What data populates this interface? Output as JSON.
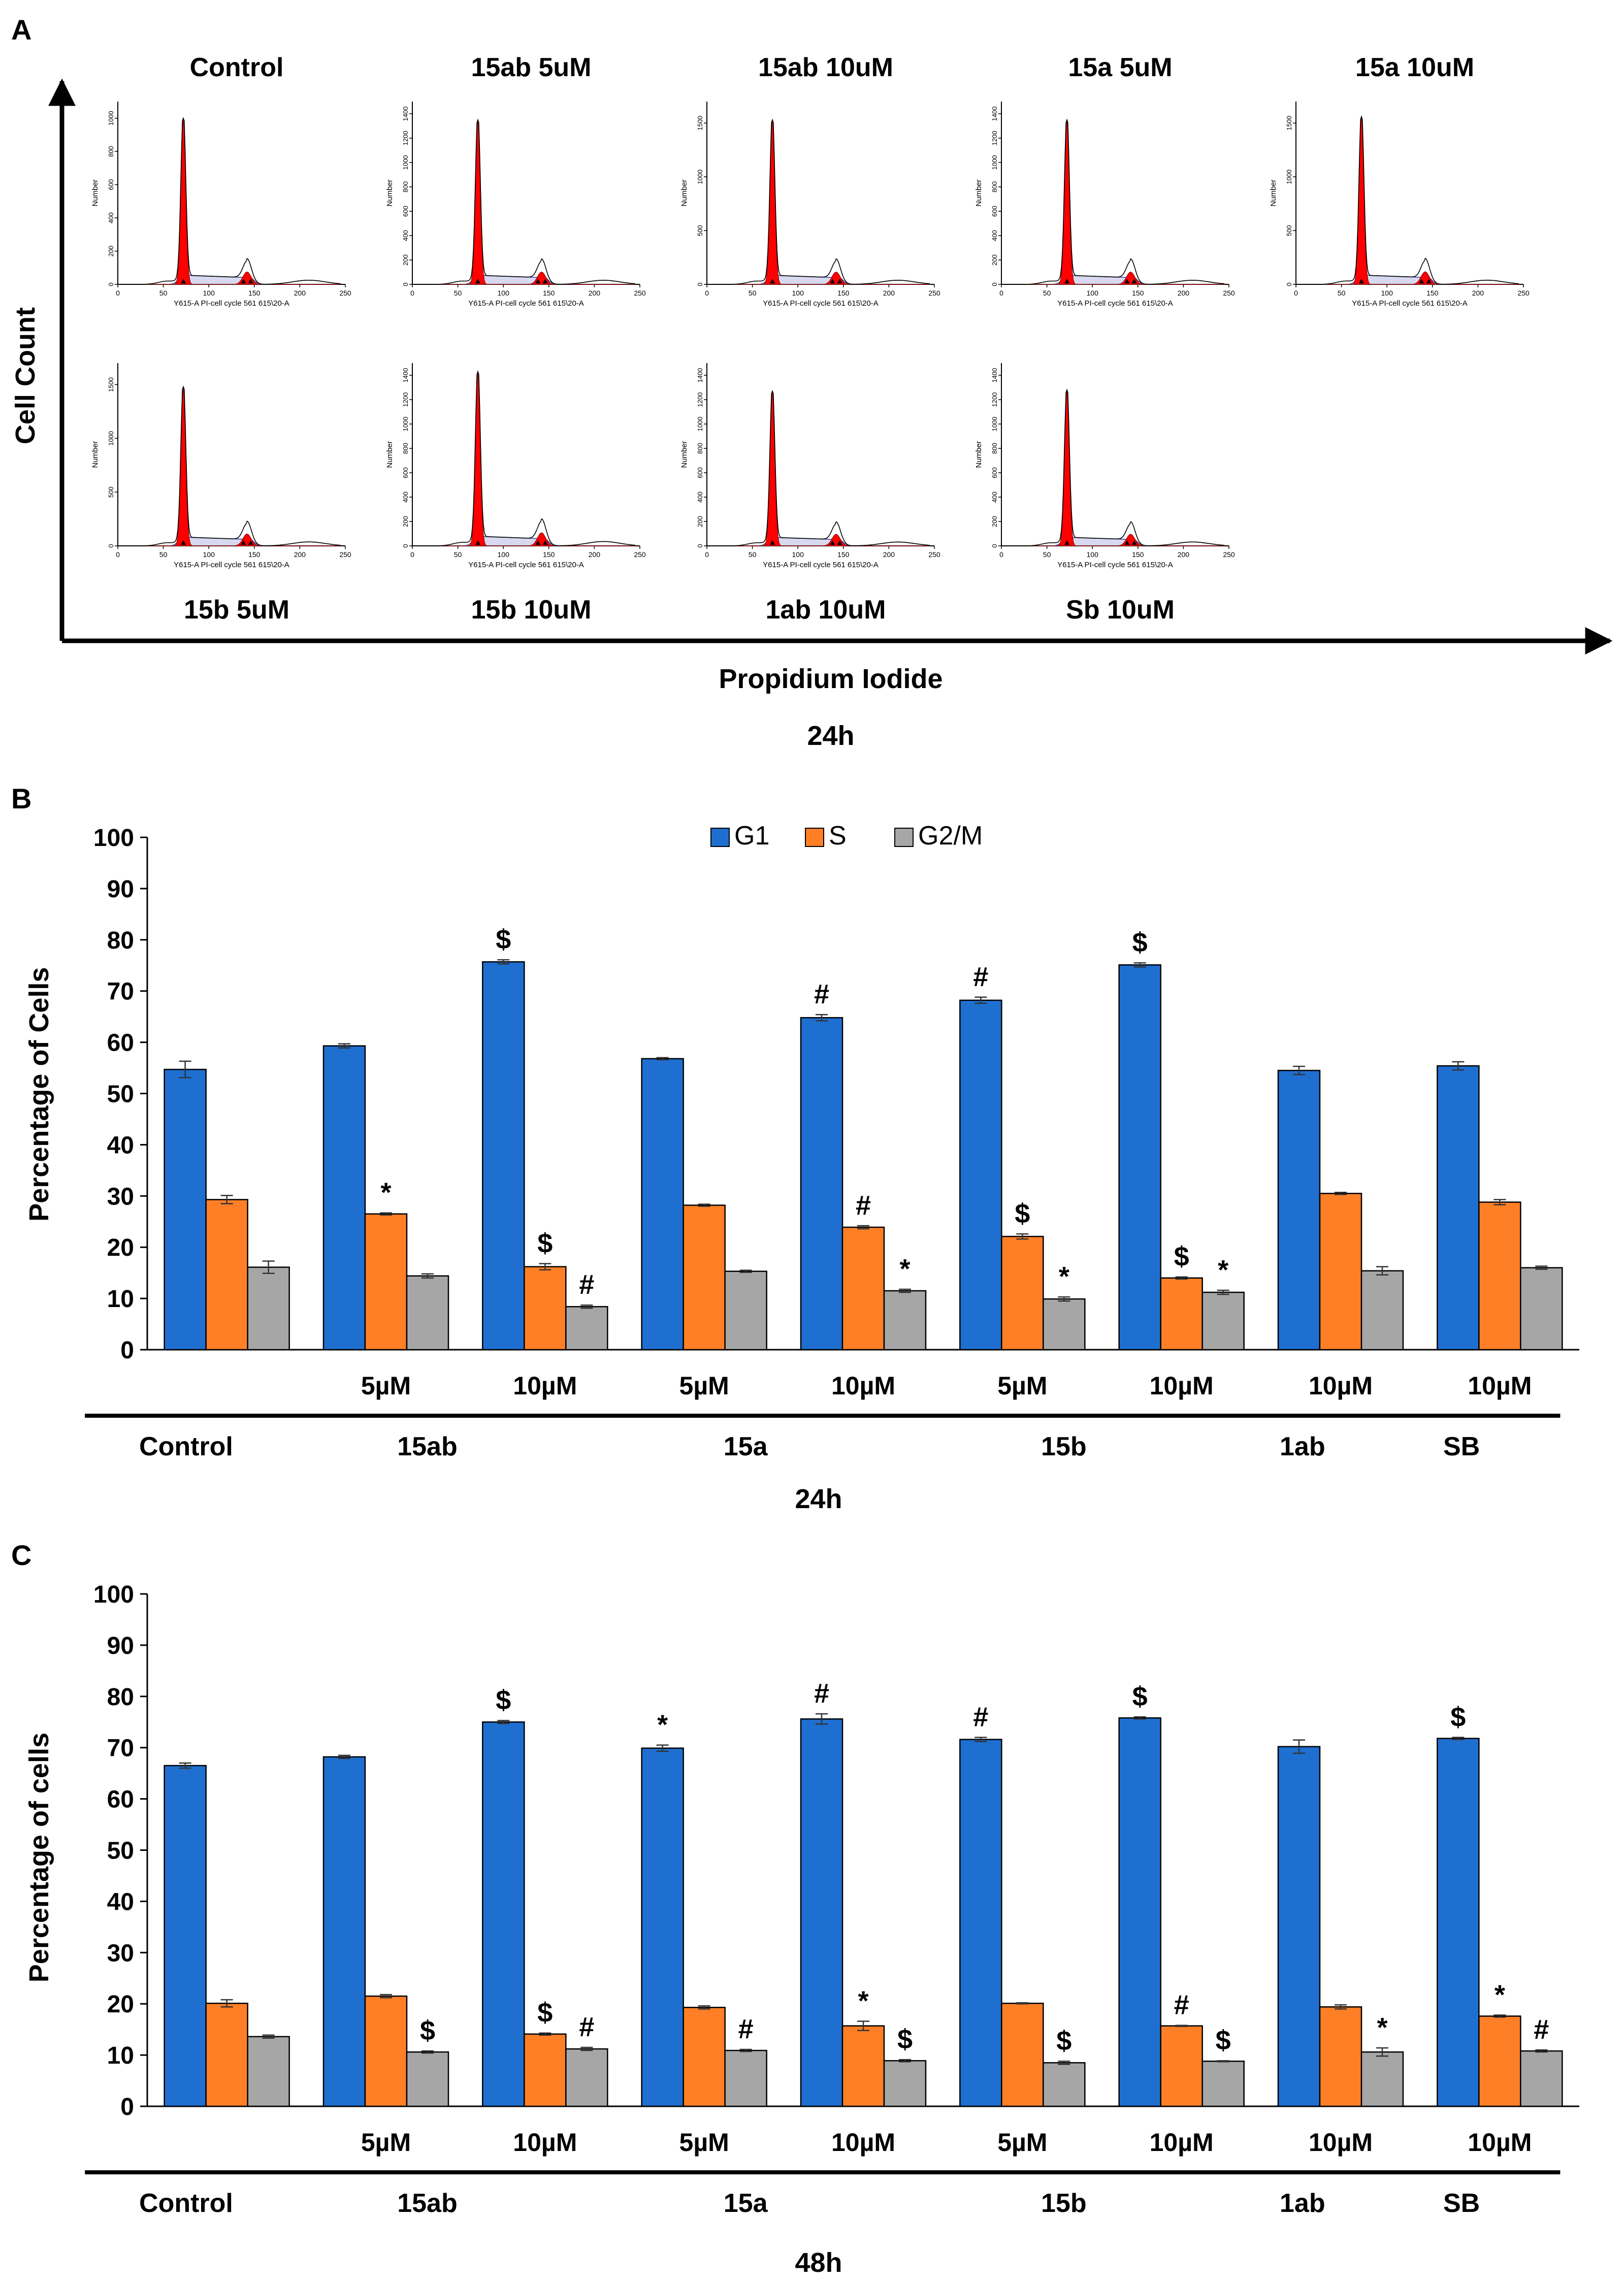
{
  "panel_a": {
    "letter": "A",
    "y_label": "Cell Count",
    "x_label": "Propidium Iodide",
    "timepoint": "24h",
    "histo_axis": {
      "y_title": "Number",
      "x_title": "Y615-A PI-cell cycle 561 615\\20-A",
      "x_ticks": [
        "0",
        "50",
        "100",
        "150",
        "200",
        "250"
      ],
      "x_range": [
        0,
        250
      ]
    },
    "rows": [
      [
        {
          "title": "Control",
          "y_ticks": [
            "0",
            "200",
            "400",
            "600",
            "800",
            "1000"
          ],
          "y_max": 1100,
          "peak_counts": 1000
        },
        {
          "title": "15ab 5uM",
          "y_ticks": [
            "0",
            "200",
            "400",
            "600",
            "800",
            "1000",
            "1200",
            "1400"
          ],
          "y_max": 1500,
          "peak_counts": 1350
        },
        {
          "title": "15ab 10uM",
          "y_ticks": [
            "0",
            "500",
            "1000",
            "1500"
          ],
          "y_max": 1700,
          "peak_counts": 1530
        },
        {
          "title": "15a 5uM",
          "y_ticks": [
            "0",
            "200",
            "400",
            "600",
            "800",
            "1000",
            "1200",
            "1400"
          ],
          "y_max": 1500,
          "peak_counts": 1350
        },
        {
          "title": "15a 10uM",
          "y_ticks": [
            "0",
            "500",
            "1000",
            "1500"
          ],
          "y_max": 1700,
          "peak_counts": 1560
        }
      ],
      [
        {
          "title": "15b 5uM",
          "y_ticks": [
            "0",
            "500",
            "1000",
            "1500"
          ],
          "y_max": 1700,
          "peak_counts": 1480
        },
        {
          "title": "15b 10uM",
          "y_ticks": [
            "0",
            "200",
            "400",
            "600",
            "800",
            "1000",
            "1200",
            "1400"
          ],
          "y_max": 1500,
          "peak_counts": 1430
        },
        {
          "title": "1ab 10uM",
          "y_ticks": [
            "0",
            "200",
            "400",
            "600",
            "800",
            "1000",
            "1200",
            "1400"
          ],
          "y_max": 1500,
          "peak_counts": 1270
        },
        {
          "title": "Sb 10uM",
          "y_ticks": [
            "0",
            "200",
            "400",
            "600",
            "800",
            "1000",
            "1200",
            "1400"
          ],
          "y_max": 1500,
          "peak_counts": 1280
        }
      ]
    ]
  },
  "chart_data": [
    {
      "id": "B",
      "letter": "B",
      "type": "bar",
      "title": "",
      "ylabel": "Percentage of Cells",
      "xlabel": "24h",
      "ylim": [
        0,
        100
      ],
      "yticks": [
        0,
        10,
        20,
        30,
        40,
        50,
        60,
        70,
        80,
        90,
        100
      ],
      "legend": {
        "position": "top-center",
        "entries": [
          "G1",
          "S",
          "G2/M"
        ]
      },
      "series_colors": [
        "#1f6fd1",
        "#ff7f27",
        "#a6a6a6"
      ],
      "conc_labels": [
        "",
        "5µM",
        "10µM",
        "5µM",
        "10µM",
        "5µM",
        "10µM",
        "10µM",
        "10µM"
      ],
      "groups": [
        {
          "label": "Control",
          "span": [
            0,
            0
          ]
        },
        {
          "label": "15ab",
          "span": [
            1,
            2
          ]
        },
        {
          "label": "15a",
          "span": [
            3,
            4
          ]
        },
        {
          "label": "15b",
          "span": [
            5,
            6
          ]
        },
        {
          "label": "1ab",
          "span": [
            7,
            7
          ]
        },
        {
          "label": "SB",
          "span": [
            8,
            8
          ]
        }
      ],
      "series": [
        {
          "name": "G1",
          "values": [
            54.7,
            59.3,
            75.7,
            56.8,
            64.8,
            68.2,
            75.1,
            54.5,
            55.4
          ],
          "errors": [
            1.6,
            0.4,
            0.4,
            0.2,
            0.6,
            0.6,
            0.4,
            0.8,
            0.8
          ],
          "markers": [
            "",
            "",
            "$",
            "",
            "#",
            "#",
            "$",
            "",
            ""
          ]
        },
        {
          "name": "S",
          "values": [
            29.3,
            26.5,
            16.2,
            28.2,
            23.9,
            22.1,
            14.0,
            30.5,
            28.8
          ],
          "errors": [
            0.8,
            0.2,
            0.6,
            0.2,
            0.3,
            0.5,
            0.2,
            0.2,
            0.5
          ],
          "markers": [
            "",
            "*",
            "$",
            "",
            "#",
            "$",
            "$",
            "",
            ""
          ]
        },
        {
          "name": "G2/M",
          "values": [
            16.1,
            14.4,
            8.4,
            15.3,
            11.5,
            9.9,
            11.2,
            15.4,
            16.0
          ],
          "errors": [
            1.2,
            0.4,
            0.3,
            0.2,
            0.3,
            0.4,
            0.4,
            0.8,
            0.3
          ],
          "markers": [
            "",
            "",
            "#",
            "",
            "*",
            "*",
            "*",
            "",
            ""
          ]
        }
      ]
    },
    {
      "id": "C",
      "letter": "C",
      "type": "bar",
      "title": "",
      "ylabel": "Percentage of cells",
      "xlabel": "48h",
      "ylim": [
        0,
        100
      ],
      "yticks": [
        0,
        10,
        20,
        30,
        40,
        50,
        60,
        70,
        80,
        90,
        100
      ],
      "legend": null,
      "series_colors": [
        "#1f6fd1",
        "#ff7f27",
        "#a6a6a6"
      ],
      "conc_labels": [
        "",
        "5µM",
        "10µM",
        "5µM",
        "10µM",
        "5µM",
        "10µM",
        "10µM",
        "10µM"
      ],
      "groups": [
        {
          "label": "Control",
          "span": [
            0,
            0
          ]
        },
        {
          "label": "15ab",
          "span": [
            1,
            2
          ]
        },
        {
          "label": "15a",
          "span": [
            3,
            4
          ]
        },
        {
          "label": "15b",
          "span": [
            5,
            6
          ]
        },
        {
          "label": "1ab",
          "span": [
            7,
            7
          ]
        },
        {
          "label": "SB",
          "span": [
            8,
            8
          ]
        }
      ],
      "series": [
        {
          "name": "G1",
          "values": [
            66.5,
            68.2,
            75.0,
            69.9,
            75.6,
            71.6,
            75.8,
            70.2,
            71.8
          ],
          "errors": [
            0.5,
            0.3,
            0.3,
            0.6,
            1.0,
            0.4,
            0.2,
            1.3,
            0.2
          ],
          "markers": [
            "",
            "",
            "$",
            "*",
            "#",
            "#",
            "$",
            "",
            "$"
          ]
        },
        {
          "name": "S",
          "values": [
            20.1,
            21.5,
            14.1,
            19.3,
            15.7,
            20.1,
            15.7,
            19.4,
            17.6
          ],
          "errors": [
            0.7,
            0.3,
            0.2,
            0.3,
            0.9,
            0.1,
            0.1,
            0.4,
            0.2
          ],
          "markers": [
            "",
            "",
            "$",
            "",
            "*",
            "",
            "#",
            "",
            "*"
          ]
        },
        {
          "name": "G2/M",
          "values": [
            13.6,
            10.6,
            11.2,
            10.9,
            8.9,
            8.5,
            8.8,
            10.6,
            10.8
          ],
          "errors": [
            0.3,
            0.2,
            0.3,
            0.2,
            0.2,
            0.3,
            0.1,
            0.8,
            0.2
          ],
          "markers": [
            "",
            "$",
            "#",
            "#",
            "$",
            "$",
            "$",
            "*",
            "#"
          ]
        }
      ]
    }
  ]
}
